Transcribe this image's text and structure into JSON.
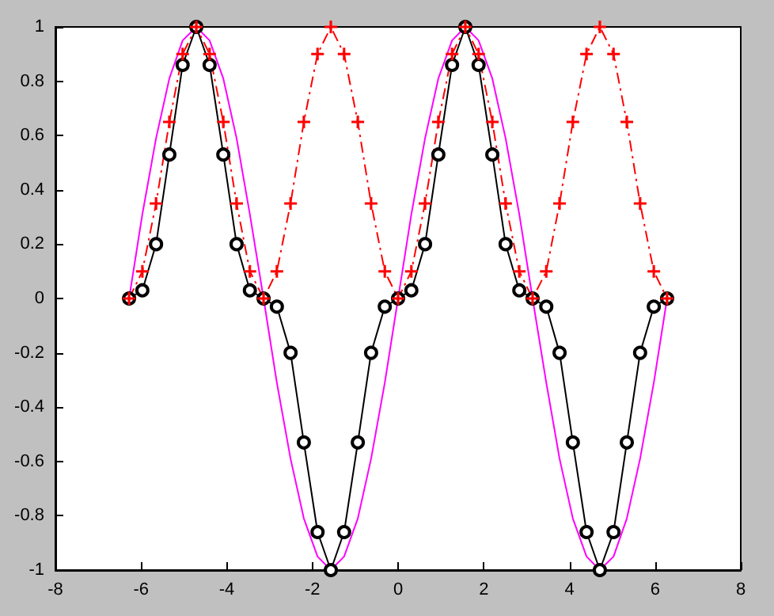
{
  "chart_data": {
    "type": "line",
    "x": [
      -6.28,
      -5.97,
      -5.65,
      -5.34,
      -5.03,
      -4.71,
      -4.4,
      -4.08,
      -3.77,
      -3.46,
      -3.14,
      -2.83,
      -2.51,
      -2.2,
      -1.88,
      -1.57,
      -1.26,
      -0.94,
      -0.63,
      -0.31,
      0,
      0.31,
      0.63,
      0.94,
      1.26,
      1.57,
      1.88,
      2.2,
      2.51,
      2.83,
      3.14,
      3.46,
      3.77,
      4.08,
      4.4,
      4.71,
      5.03,
      5.34,
      5.65,
      5.97,
      6.28
    ],
    "series": [
      {
        "color": "#ff00ff",
        "marker": "none",
        "line_style": "solid",
        "values": [
          0,
          0.31,
          0.59,
          0.81,
          0.95,
          1,
          0.95,
          0.81,
          0.59,
          0.31,
          0,
          -0.31,
          -0.59,
          -0.81,
          -0.95,
          -1,
          -0.95,
          -0.81,
          -0.59,
          -0.31,
          0,
          0.31,
          0.59,
          0.81,
          0.95,
          1,
          0.95,
          0.81,
          0.59,
          0.31,
          0,
          -0.31,
          -0.59,
          -0.81,
          -0.95,
          -1,
          -0.95,
          -0.81,
          -0.59,
          -0.31,
          0
        ]
      },
      {
        "color": "#000000",
        "marker": "circle",
        "line_style": "solid",
        "values": [
          0,
          0.03,
          0.2,
          0.53,
          0.86,
          1,
          0.86,
          0.53,
          0.2,
          0.03,
          0,
          -0.03,
          -0.2,
          -0.53,
          -0.86,
          -1,
          -0.86,
          -0.53,
          -0.2,
          -0.03,
          0,
          0.03,
          0.2,
          0.53,
          0.86,
          1,
          0.86,
          0.53,
          0.2,
          0.03,
          0,
          -0.03,
          -0.2,
          -0.53,
          -0.86,
          -1,
          -0.86,
          -0.53,
          -0.2,
          -0.03,
          0
        ]
      },
      {
        "color": "#ff0000",
        "marker": "cross",
        "line_style": "dashed",
        "values": [
          0,
          0.1,
          0.35,
          0.65,
          0.9,
          1,
          0.9,
          0.65,
          0.35,
          0.1,
          0,
          0.1,
          0.35,
          0.65,
          0.9,
          1,
          0.9,
          0.65,
          0.35,
          0.1,
          0,
          0.1,
          0.35,
          0.65,
          0.9,
          1,
          0.9,
          0.65,
          0.35,
          0.1,
          0,
          0.1,
          0.35,
          0.65,
          0.9,
          1,
          0.9,
          0.65,
          0.35,
          0.1,
          0
        ]
      }
    ],
    "xlim": [
      -8,
      8
    ],
    "xticks": [
      -8,
      -6,
      -4,
      -2,
      0,
      2,
      4,
      6,
      8
    ],
    "ylim": [
      -1,
      1
    ],
    "yticks": [
      -1,
      -0.8,
      -0.6,
      -0.4,
      -0.2,
      0,
      0.2,
      0.4,
      0.6,
      0.8,
      1
    ],
    "grid": false
  }
}
